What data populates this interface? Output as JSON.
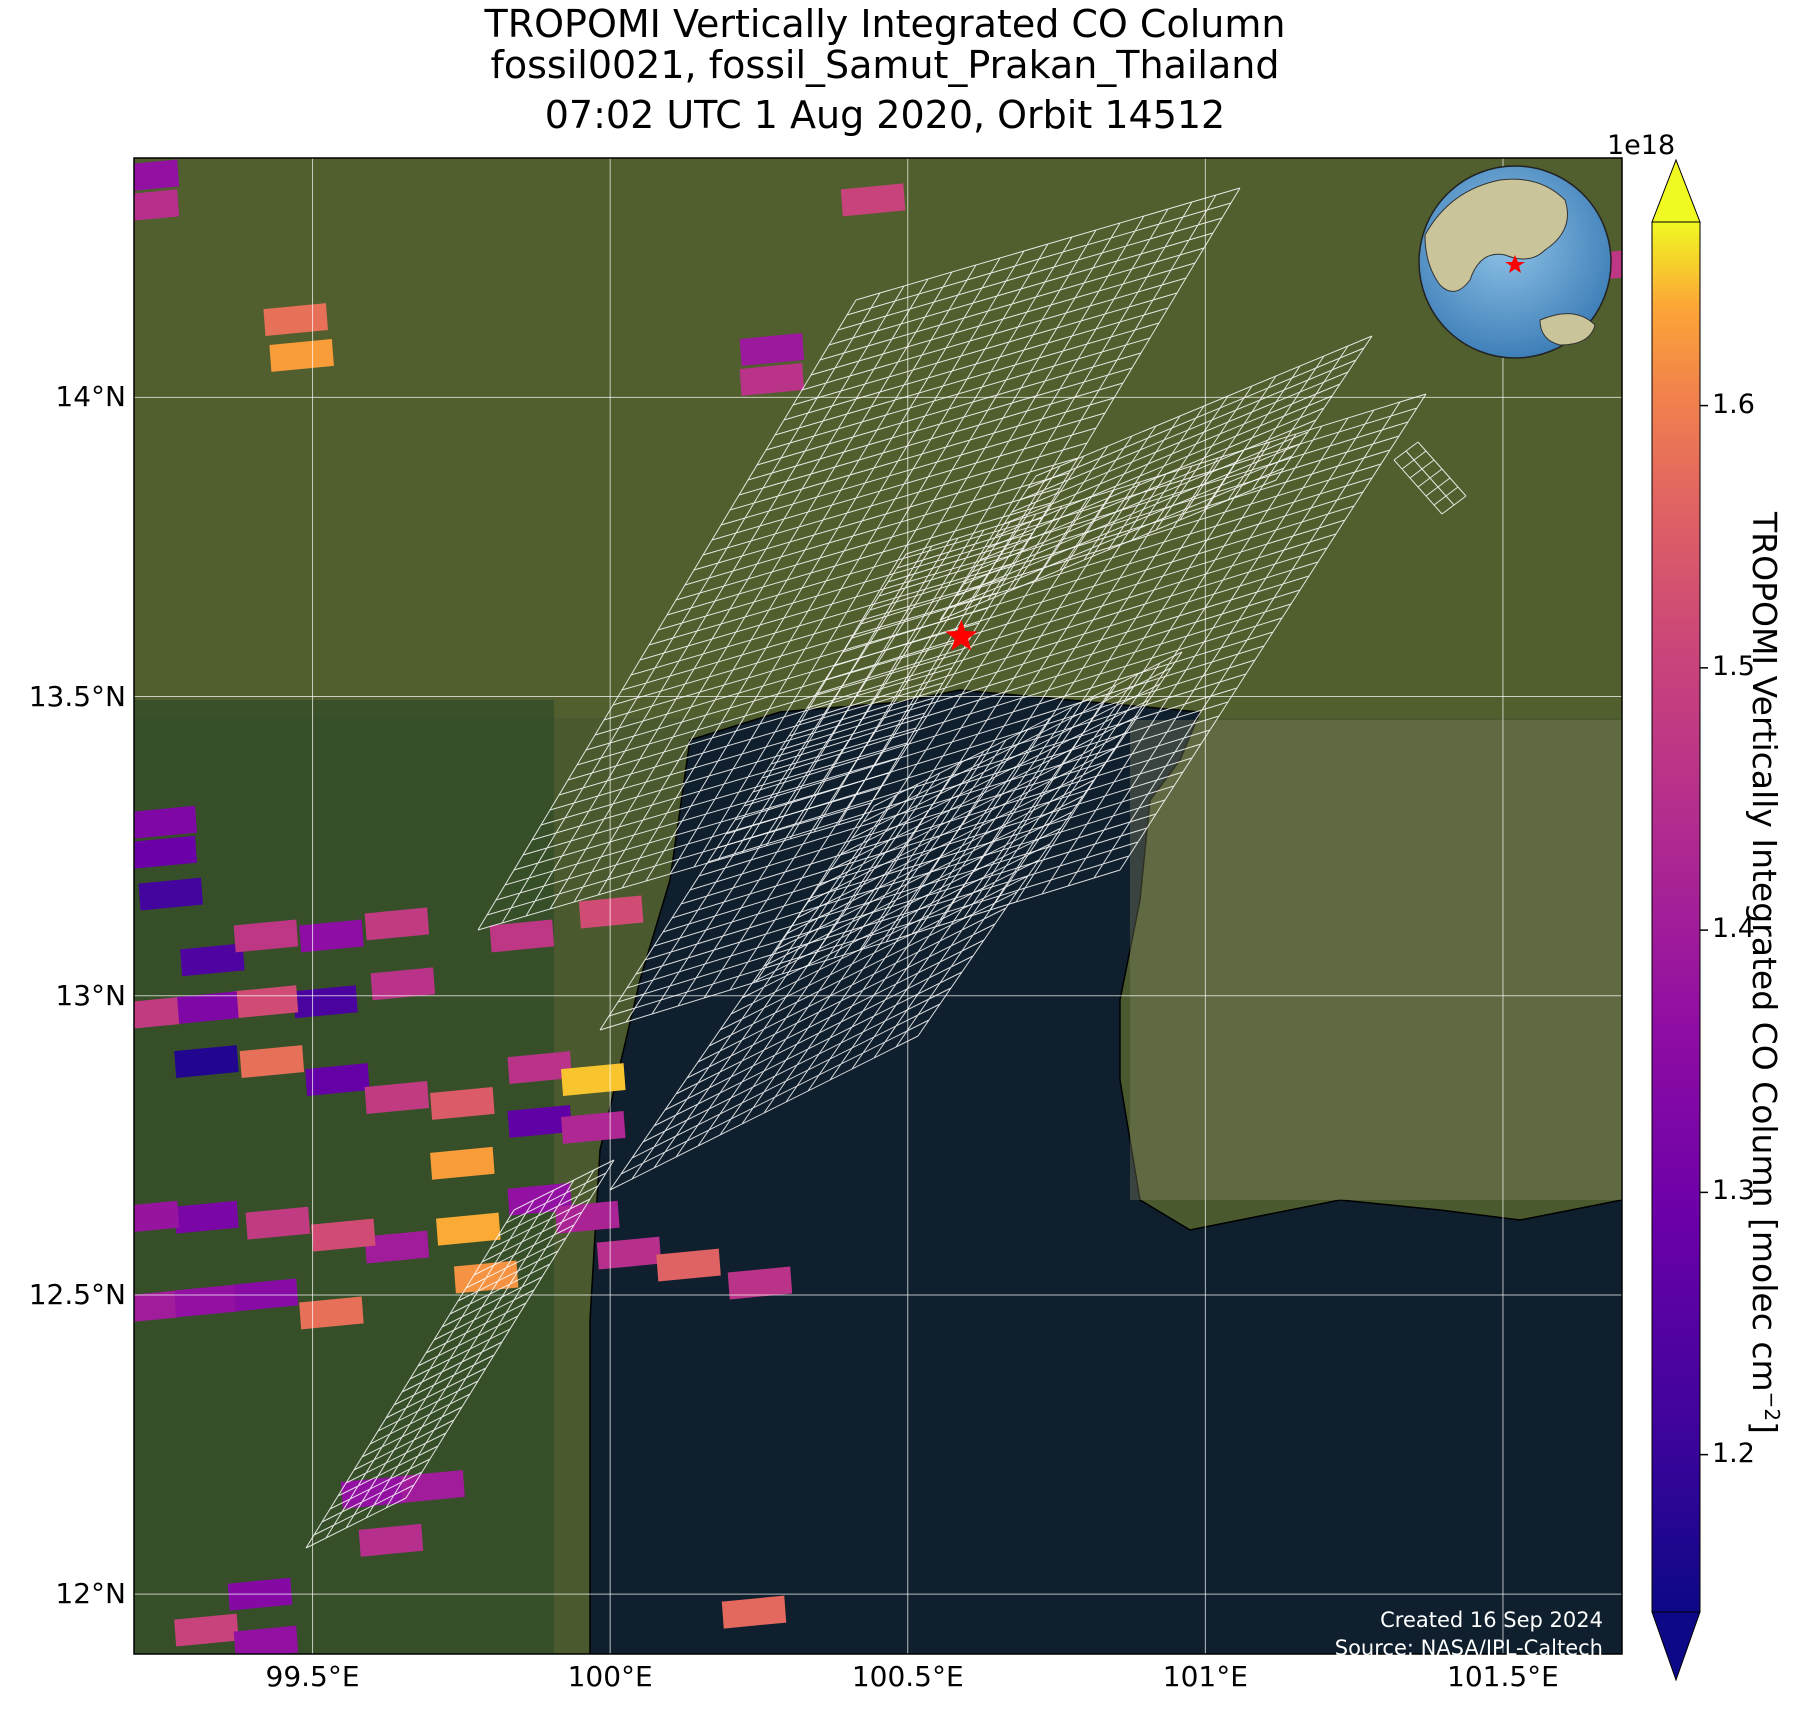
{
  "title": {
    "line1": "TROPOMI Vertically Integrated CO Column",
    "line2": "fossil0021, fossil_Samut_Prakan_Thailand",
    "line3": "07:02 UTC 1 Aug 2020, Orbit 14512"
  },
  "map": {
    "lon_range": [
      99.2,
      101.7
    ],
    "lat_range": [
      11.9,
      14.4
    ],
    "gridlines": true,
    "background": "satellite imagery",
    "target": {
      "name": "red-star-marker",
      "lon": 100.59,
      "lat": 13.6,
      "color": "#ff0000"
    },
    "lon_ticks": [
      {
        "value": 99.5,
        "label": "99.5°E"
      },
      {
        "value": 100.0,
        "label": "100°E"
      },
      {
        "value": 100.5,
        "label": "100.5°E"
      },
      {
        "value": 101.0,
        "label": "101°E"
      },
      {
        "value": 101.5,
        "label": "101.5°E"
      }
    ],
    "lat_ticks": [
      {
        "value": 14.0,
        "label": "14°N"
      },
      {
        "value": 13.5,
        "label": "13.5°N"
      },
      {
        "value": 13.0,
        "label": "13°N"
      },
      {
        "value": 12.5,
        "label": "12.5°N"
      },
      {
        "value": 12.0,
        "label": "12°N"
      }
    ]
  },
  "colorbar": {
    "multiplier": "1e18",
    "label_main": "TROPOMI Vertically Integrated CO Column [molec cm",
    "label_sup": "−2",
    "label_end": "]",
    "colormap": "plasma",
    "range": [
      1.14,
      1.67
    ],
    "ticks": [
      {
        "value": 1.2,
        "label": "1.2"
      },
      {
        "value": 1.3,
        "label": "1.3"
      },
      {
        "value": 1.4,
        "label": "1.4"
      },
      {
        "value": 1.5,
        "label": "1.5"
      },
      {
        "value": 1.6,
        "label": "1.6"
      }
    ]
  },
  "chart_data": {
    "type": "heatmap",
    "title": "TROPOMI Vertically Integrated CO Column",
    "units": "molec cm^-2 (x1e18)",
    "pixels": [
      {
        "lon": 99.22,
        "lat": 14.32,
        "value": 1.45
      },
      {
        "lon": 99.22,
        "lat": 14.37,
        "value": 1.37
      },
      {
        "lon": 99.48,
        "lat": 14.07,
        "value": 1.63
      },
      {
        "lon": 99.47,
        "lat": 14.13,
        "value": 1.58
      },
      {
        "lon": 100.44,
        "lat": 14.33,
        "value": 1.5
      },
      {
        "lon": 100.27,
        "lat": 14.08,
        "value": 1.39
      },
      {
        "lon": 100.27,
        "lat": 14.03,
        "value": 1.46
      },
      {
        "lon": 101.67,
        "lat": 14.22,
        "value": 1.47
      },
      {
        "lon": 99.25,
        "lat": 13.29,
        "value": 1.33
      },
      {
        "lon": 99.25,
        "lat": 13.24,
        "value": 1.29
      },
      {
        "lon": 99.26,
        "lat": 13.17,
        "value": 1.22
      },
      {
        "lon": 99.33,
        "lat": 13.06,
        "value": 1.24
      },
      {
        "lon": 99.42,
        "lat": 13.1,
        "value": 1.47
      },
      {
        "lon": 99.53,
        "lat": 13.1,
        "value": 1.36
      },
      {
        "lon": 99.64,
        "lat": 13.12,
        "value": 1.48
      },
      {
        "lon": 99.65,
        "lat": 13.02,
        "value": 1.46
      },
      {
        "lon": 99.52,
        "lat": 12.99,
        "value": 1.23
      },
      {
        "lon": 99.42,
        "lat": 12.99,
        "value": 1.52
      },
      {
        "lon": 99.32,
        "lat": 12.98,
        "value": 1.33
      },
      {
        "lon": 99.22,
        "lat": 12.97,
        "value": 1.48
      },
      {
        "lon": 99.32,
        "lat": 12.89,
        "value": 1.17
      },
      {
        "lon": 99.43,
        "lat": 12.89,
        "value": 1.58
      },
      {
        "lon": 99.54,
        "lat": 12.86,
        "value": 1.28
      },
      {
        "lon": 99.64,
        "lat": 12.83,
        "value": 1.48
      },
      {
        "lon": 99.75,
        "lat": 12.82,
        "value": 1.55
      },
      {
        "lon": 99.88,
        "lat": 12.88,
        "value": 1.46
      },
      {
        "lon": 99.97,
        "lat": 12.86,
        "value": 1.65
      },
      {
        "lon": 99.88,
        "lat": 12.79,
        "value": 1.27
      },
      {
        "lon": 99.97,
        "lat": 12.78,
        "value": 1.43
      },
      {
        "lon": 99.75,
        "lat": 12.72,
        "value": 1.63
      },
      {
        "lon": 99.76,
        "lat": 12.61,
        "value": 1.64
      },
      {
        "lon": 99.88,
        "lat": 12.66,
        "value": 1.37
      },
      {
        "lon": 99.96,
        "lat": 12.63,
        "value": 1.42
      },
      {
        "lon": 99.79,
        "lat": 12.53,
        "value": 1.62
      },
      {
        "lon": 100.03,
        "lat": 12.57,
        "value": 1.45
      },
      {
        "lon": 100.13,
        "lat": 12.55,
        "value": 1.56
      },
      {
        "lon": 100.25,
        "lat": 12.52,
        "value": 1.46
      },
      {
        "lon": 99.64,
        "lat": 12.58,
        "value": 1.4
      },
      {
        "lon": 99.55,
        "lat": 12.6,
        "value": 1.52
      },
      {
        "lon": 99.44,
        "lat": 12.62,
        "value": 1.48
      },
      {
        "lon": 99.32,
        "lat": 12.63,
        "value": 1.32
      },
      {
        "lon": 99.22,
        "lat": 12.63,
        "value": 1.38
      },
      {
        "lon": 99.22,
        "lat": 12.48,
        "value": 1.4
      },
      {
        "lon": 99.32,
        "lat": 12.49,
        "value": 1.37
      },
      {
        "lon": 99.42,
        "lat": 12.5,
        "value": 1.35
      },
      {
        "lon": 99.53,
        "lat": 12.47,
        "value": 1.58
      },
      {
        "lon": 99.85,
        "lat": 13.1,
        "value": 1.47
      },
      {
        "lon": 100.0,
        "lat": 13.14,
        "value": 1.52
      },
      {
        "lon": 99.6,
        "lat": 12.17,
        "value": 1.37
      },
      {
        "lon": 99.7,
        "lat": 12.18,
        "value": 1.4
      },
      {
        "lon": 99.63,
        "lat": 12.09,
        "value": 1.45
      },
      {
        "lon": 99.41,
        "lat": 12.0,
        "value": 1.34
      },
      {
        "lon": 99.32,
        "lat": 11.94,
        "value": 1.5
      },
      {
        "lon": 99.42,
        "lat": 11.92,
        "value": 1.37
      },
      {
        "lon": 100.24,
        "lat": 11.97,
        "value": 1.57
      }
    ]
  },
  "inset": {
    "name": "globe-locator",
    "marker_color": "#ff0000"
  },
  "footer": {
    "created": "Created 16 Sep 2024",
    "source": "Source: NASA/JPL-Caltech"
  }
}
